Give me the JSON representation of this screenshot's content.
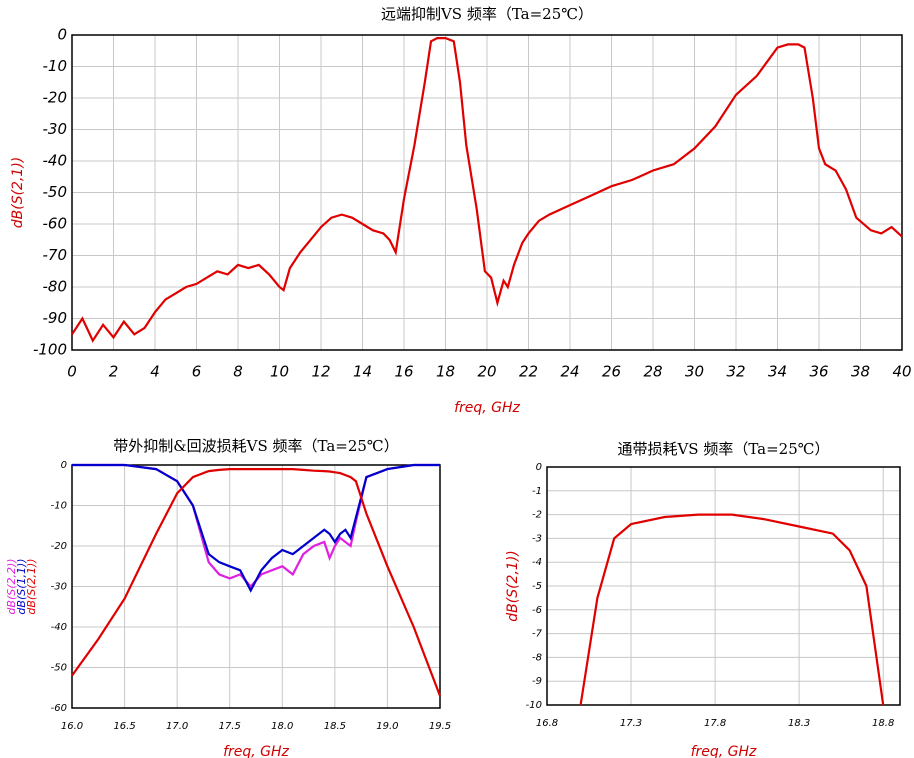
{
  "chart_data": [
    {
      "type": "line",
      "title": "远端抑制VS 频率（Ta=25℃）",
      "x_label": "freq, GHz",
      "y_label": "dB(S(2,1))",
      "xlim": [
        0,
        40
      ],
      "ylim": [
        -100,
        0
      ],
      "grid": true,
      "xticks": [
        0,
        2,
        4,
        6,
        8,
        10,
        12,
        14,
        16,
        18,
        20,
        22,
        24,
        26,
        28,
        30,
        32,
        34,
        36,
        38,
        40
      ],
      "yticks": [
        0,
        -10,
        -20,
        -30,
        -40,
        -50,
        -60,
        -70,
        -80,
        -90,
        -100
      ],
      "x": [
        0,
        0.5,
        1,
        1.5,
        2,
        2.5,
        3,
        3.5,
        4,
        4.5,
        5,
        5.5,
        6,
        6.5,
        7,
        7.5,
        8,
        8.5,
        9,
        9.5,
        10,
        10.2,
        10.5,
        11,
        11.5,
        12,
        12.5,
        13,
        13.5,
        14,
        14.5,
        15,
        15.3,
        15.6,
        16,
        16.5,
        17,
        17.3,
        17.6,
        18,
        18.4,
        18.7,
        19,
        19.5,
        19.9,
        20.2,
        20.5,
        20.8,
        21,
        21.3,
        21.7,
        22,
        22.5,
        23,
        24,
        25,
        26,
        27,
        28,
        29,
        30,
        31,
        32,
        33,
        34,
        34.5,
        35,
        35.3,
        35.7,
        36,
        36.3,
        36.8,
        37.3,
        37.8,
        38.5,
        39,
        39.5,
        40
      ],
      "series": [
        {
          "name": "dB(S(2,1))",
          "color": "#e00000",
          "values": [
            -95,
            -90,
            -97,
            -92,
            -96,
            -91,
            -95,
            -93,
            -88,
            -84,
            -82,
            -80,
            -79,
            -77,
            -75,
            -76,
            -73,
            -74,
            -73,
            -76,
            -80,
            -81,
            -74,
            -69,
            -65,
            -61,
            -58,
            -57,
            -58,
            -60,
            -62,
            -63,
            -65,
            -69,
            -52,
            -35,
            -15,
            -2,
            -1,
            -1,
            -2,
            -15,
            -35,
            -55,
            -75,
            -77,
            -85,
            -78,
            -80,
            -73,
            -66,
            -63,
            -59,
            -57,
            -54,
            -51,
            -48,
            -46,
            -43,
            -41,
            -36,
            -29,
            -19,
            -13,
            -4,
            -3,
            -3,
            -4,
            -20,
            -36,
            -41,
            -43,
            -49,
            -58,
            -62,
            -63,
            -61,
            -64
          ]
        }
      ]
    },
    {
      "type": "line",
      "title": "带外抑制&回波损耗VS 频率（Ta=25℃）",
      "x_label": "freq, GHz",
      "xlim": [
        16,
        19.5
      ],
      "ylim": [
        -60,
        0
      ],
      "grid": true,
      "xticks": [
        {
          "value": 16,
          "label": "16.0"
        },
        16.5,
        {
          "value": 17,
          "label": "17.0"
        },
        17.5,
        {
          "value": 18,
          "label": "18.0"
        },
        18.5,
        {
          "value": 19,
          "label": "19.0"
        },
        19.5
      ],
      "yticks": [
        0,
        -10,
        -20,
        -30,
        -40,
        -50,
        -60
      ],
      "x": [
        16,
        16.25,
        16.5,
        16.8,
        17,
        17.15,
        17.3,
        17.4,
        17.5,
        17.6,
        17.7,
        17.8,
        17.9,
        18,
        18.1,
        18.2,
        18.3,
        18.4,
        18.45,
        18.5,
        18.55,
        18.6,
        18.65,
        18.7,
        18.8,
        19,
        19.25,
        19.5
      ],
      "series": [
        {
          "name": "dB(S(2,2))",
          "color": "#e020e0",
          "values": [
            0,
            0,
            0,
            -1,
            -4,
            -10,
            -24,
            -27,
            -28,
            -27,
            -30,
            -27,
            -26,
            -25,
            -27,
            -22,
            -20,
            -19,
            -23,
            -20,
            -18,
            -19,
            -20,
            -14,
            -3,
            -1,
            0,
            0
          ]
        },
        {
          "name": "dB(S(1,1))",
          "color": "#0000cc",
          "values": [
            0,
            0,
            0,
            -1,
            -4,
            -10,
            -22,
            -24,
            -25,
            -26,
            -31,
            -26,
            -23,
            -21,
            -22,
            -20,
            -18,
            -16,
            -17,
            -19,
            -17,
            -16,
            -18,
            -13,
            -3,
            -1,
            0,
            0
          ]
        },
        {
          "name": "dB(S(2,1))",
          "color": "#e00000",
          "values": [
            -52,
            -43,
            -33,
            -17,
            -7,
            -3,
            -1.5,
            -1.2,
            -1,
            -1,
            -1,
            -1,
            -1,
            -1,
            -1,
            -1.2,
            -1.4,
            -1.5,
            -1.6,
            -1.8,
            -2,
            -2.5,
            -3,
            -4,
            -12,
            -25,
            -40,
            -57
          ]
        }
      ]
    },
    {
      "type": "line",
      "title": "通带损耗VS 频率（Ta=25℃）",
      "x_label": "freq, GHz",
      "y_label": "dB(S(2,1))",
      "xlim": [
        16.8,
        18.9
      ],
      "ylim": [
        -10,
        0
      ],
      "grid": true,
      "xticks": [
        16.8,
        17.3,
        17.8,
        18.3,
        18.8
      ],
      "yticks": [
        0,
        -1,
        -2,
        -3,
        -4,
        -5,
        -6,
        -7,
        -8,
        -9,
        -10
      ],
      "x": [
        17,
        17.1,
        17.2,
        17.3,
        17.5,
        17.7,
        17.9,
        18.1,
        18.3,
        18.5,
        18.6,
        18.7,
        18.8
      ],
      "series": [
        {
          "name": "dB(S(2,1))",
          "color": "#e00000",
          "values": [
            -10,
            -5.5,
            -3,
            -2.4,
            -2.1,
            -2,
            -2,
            -2.2,
            -2.5,
            -2.8,
            -3.5,
            -5,
            -10
          ]
        }
      ]
    }
  ]
}
